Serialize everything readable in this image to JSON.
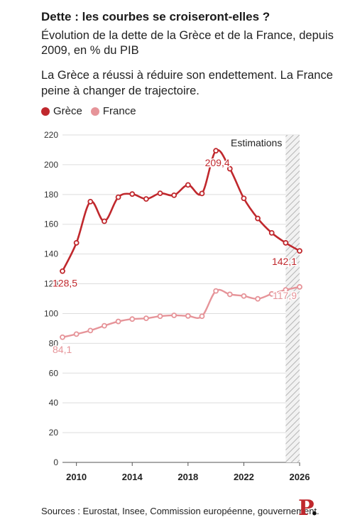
{
  "header": {
    "title": "Dette : les courbes se croiseront-elles ?",
    "subtitle": "Évolution de la dette de la Grèce et de la France, depuis 2009, en % du PIB",
    "description": "La Grèce a réussi à réduire son endettement. La France peine à changer de trajectoire."
  },
  "legend": [
    {
      "name": "Grèce",
      "color": "#c0282d"
    },
    {
      "name": "France",
      "color": "#e69499"
    }
  ],
  "colors": {
    "greece": "#c0282d",
    "france": "#e69499",
    "grid": "#dddddd",
    "axis": "#555555"
  },
  "annotation": {
    "estimations_label": "Estimations",
    "estimations_from": 2025
  },
  "footer": {
    "source": "Sources : Eurostat, Insee, Commission européenne, gouvernement.",
    "logo": "P"
  },
  "chart_data": {
    "type": "line",
    "title": "Dette : les courbes se croiseront-elles ?",
    "x": [
      2009,
      2010,
      2011,
      2012,
      2013,
      2014,
      2015,
      2016,
      2017,
      2018,
      2019,
      2020,
      2021,
      2022,
      2023,
      2024,
      2025,
      2026
    ],
    "xticks": [
      2010,
      2014,
      2018,
      2022,
      2026
    ],
    "xlim": [
      2009,
      2026
    ],
    "ylim": [
      0,
      220
    ],
    "yticks": [
      0,
      20,
      40,
      60,
      80,
      100,
      120,
      140,
      160,
      180,
      200,
      220
    ],
    "grid": true,
    "legend_position": "top-left",
    "series": [
      {
        "name": "Grèce",
        "color": "#c0282d",
        "values": [
          128.5,
          147.5,
          175.2,
          162.0,
          178.2,
          180.3,
          177.0,
          180.8,
          179.5,
          186.4,
          180.7,
          209.4,
          197.3,
          177.4,
          163.9,
          154.2,
          147.5,
          142.1
        ],
        "labels": [
          {
            "x": 2009,
            "text": "128,5"
          },
          {
            "x": 2020,
            "text": "209,4"
          },
          {
            "x": 2026,
            "text": "142,1"
          }
        ]
      },
      {
        "name": "France",
        "color": "#e69499",
        "values": [
          84.1,
          86.2,
          88.6,
          91.8,
          94.7,
          96.3,
          96.8,
          98.2,
          98.8,
          98.4,
          98.2,
          115.2,
          112.9,
          111.8,
          109.9,
          113.2,
          115.9,
          117.9
        ],
        "labels": [
          {
            "x": 2009,
            "text": "84,1"
          },
          {
            "x": 2026,
            "text": "117,9"
          }
        ]
      }
    ]
  }
}
